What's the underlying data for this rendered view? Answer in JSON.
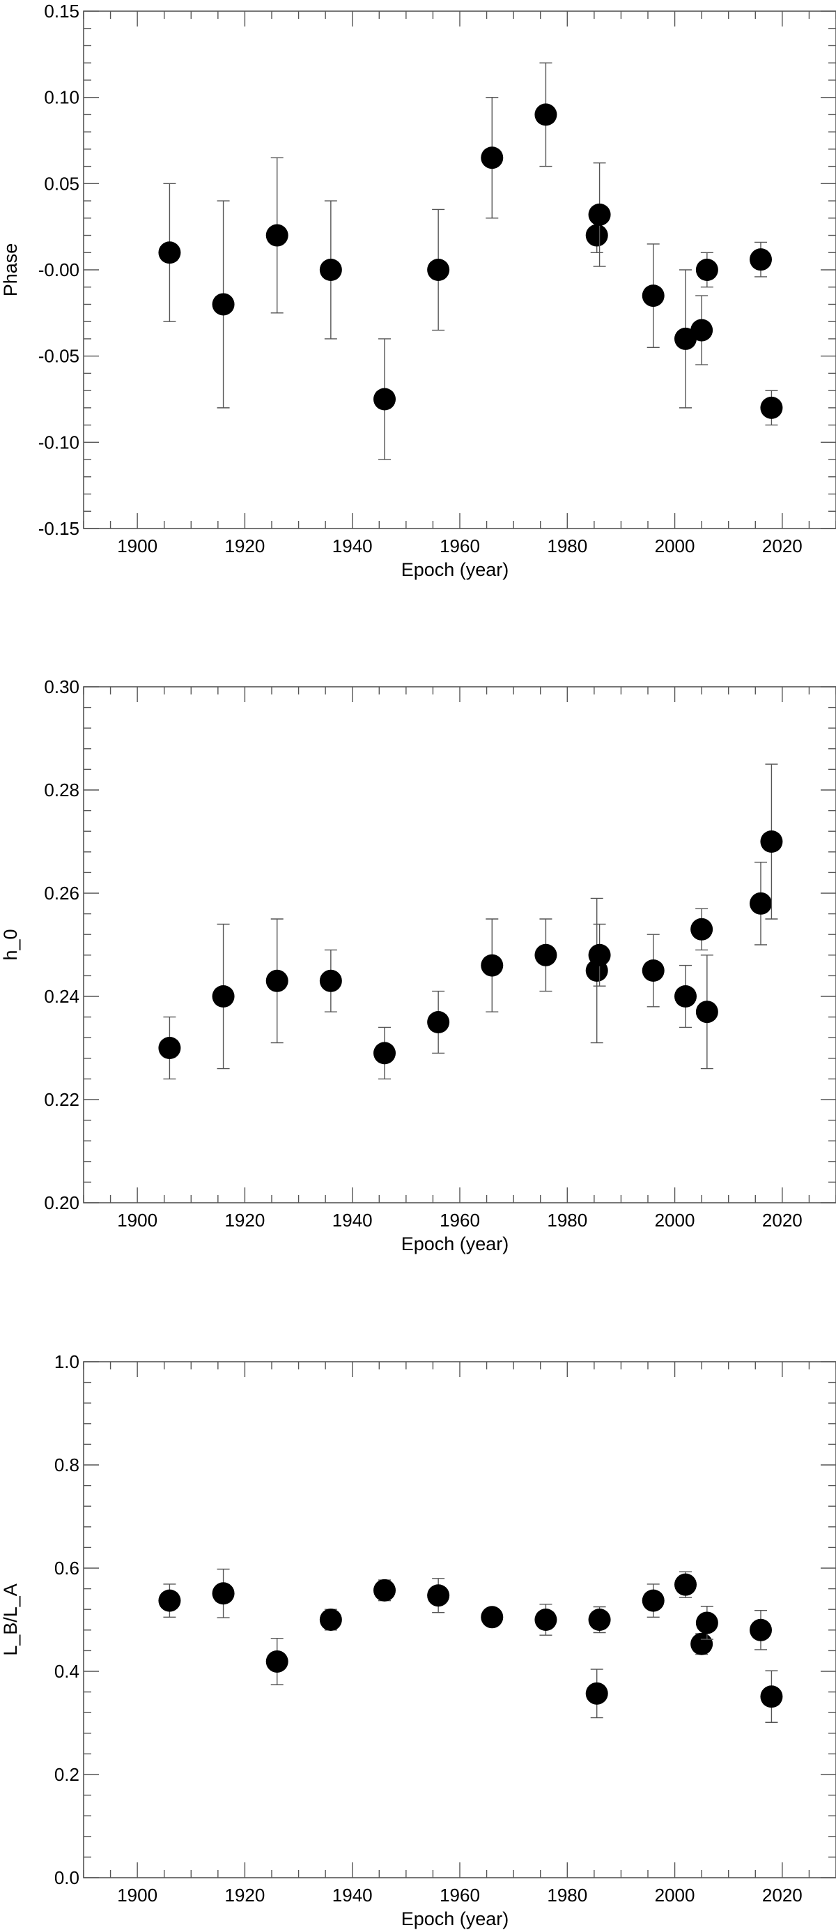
{
  "colors": {
    "axes": "#555555",
    "markers": "#000000",
    "background": "#ffffff"
  },
  "chart_data": [
    {
      "type": "scatter",
      "xlabel": "Epoch (year)",
      "ylabel": "Phase",
      "xlim": [
        1890,
        2030
      ],
      "ylim": [
        -0.15,
        0.15
      ],
      "xticks": [
        1900,
        1920,
        1940,
        1960,
        1980,
        2000,
        2020
      ],
      "xtick_labels": [
        "1900",
        "1920",
        "1940",
        "1960",
        "1980",
        "2000",
        "2020"
      ],
      "yticks": [
        -0.15,
        -0.1,
        -0.05,
        0.0,
        0.05,
        0.1,
        0.15
      ],
      "ytick_labels": [
        "-0.15",
        "-0.10",
        "-0.05",
        "-0.00",
        "0.05",
        "0.10",
        "0.15"
      ],
      "grid": false,
      "points": [
        {
          "x": 1906,
          "y": 0.01,
          "err": 0.04
        },
        {
          "x": 1916,
          "y": -0.02,
          "err": 0.06
        },
        {
          "x": 1926,
          "y": 0.02,
          "err": 0.045
        },
        {
          "x": 1936,
          "y": 0.0,
          "err": 0.04
        },
        {
          "x": 1946,
          "y": -0.075,
          "err": 0.035
        },
        {
          "x": 1956,
          "y": 0.0,
          "err": 0.035
        },
        {
          "x": 1966,
          "y": 0.065,
          "err": 0.035
        },
        {
          "x": 1976,
          "y": 0.09,
          "err": 0.03
        },
        {
          "x": 1985.5,
          "y": 0.02,
          "err": 0.01
        },
        {
          "x": 1986,
          "y": 0.032,
          "err": 0.03
        },
        {
          "x": 1996,
          "y": -0.015,
          "err": 0.03
        },
        {
          "x": 2002,
          "y": -0.04,
          "err": 0.04
        },
        {
          "x": 2005,
          "y": -0.035,
          "err": 0.02
        },
        {
          "x": 2006,
          "y": 0.0,
          "err": 0.01
        },
        {
          "x": 2016,
          "y": 0.006,
          "err": 0.01
        },
        {
          "x": 2018,
          "y": -0.08,
          "err": 0.01
        }
      ]
    },
    {
      "type": "scatter",
      "xlabel": "Epoch (year)",
      "ylabel": "h_0",
      "xlim": [
        1890,
        2030
      ],
      "ylim": [
        0.2,
        0.3
      ],
      "xticks": [
        1900,
        1920,
        1940,
        1960,
        1980,
        2000,
        2020
      ],
      "xtick_labels": [
        "1900",
        "1920",
        "1940",
        "1960",
        "1980",
        "2000",
        "2020"
      ],
      "yticks": [
        0.2,
        0.22,
        0.24,
        0.26,
        0.28,
        0.3
      ],
      "ytick_labels": [
        "0.20",
        "0.22",
        "0.24",
        "0.26",
        "0.28",
        "0.30"
      ],
      "grid": false,
      "points": [
        {
          "x": 1906,
          "y": 0.23,
          "err": 0.006
        },
        {
          "x": 1916,
          "y": 0.24,
          "err": 0.014
        },
        {
          "x": 1926,
          "y": 0.243,
          "err": 0.012
        },
        {
          "x": 1936,
          "y": 0.243,
          "err": 0.006
        },
        {
          "x": 1946,
          "y": 0.229,
          "err": 0.005
        },
        {
          "x": 1956,
          "y": 0.235,
          "err": 0.006
        },
        {
          "x": 1966,
          "y": 0.246,
          "err": 0.009
        },
        {
          "x": 1976,
          "y": 0.248,
          "err": 0.007
        },
        {
          "x": 1985.5,
          "y": 0.245,
          "err": 0.014
        },
        {
          "x": 1986,
          "y": 0.248,
          "err": 0.006
        },
        {
          "x": 1996,
          "y": 0.245,
          "err": 0.007
        },
        {
          "x": 2002,
          "y": 0.24,
          "err": 0.006
        },
        {
          "x": 2005,
          "y": 0.253,
          "err": 0.004
        },
        {
          "x": 2006,
          "y": 0.237,
          "err": 0.011
        },
        {
          "x": 2016,
          "y": 0.258,
          "err": 0.008
        },
        {
          "x": 2018,
          "y": 0.27,
          "err": 0.015
        }
      ]
    },
    {
      "type": "scatter",
      "xlabel": "Epoch (year)",
      "ylabel": "L_B/L_A",
      "xlim": [
        1890,
        2030
      ],
      "ylim": [
        0.0,
        1.0
      ],
      "xticks": [
        1900,
        1920,
        1940,
        1960,
        1980,
        2000,
        2020
      ],
      "xtick_labels": [
        "1900",
        "1920",
        "1940",
        "1960",
        "1980",
        "2000",
        "2020"
      ],
      "yticks": [
        0.0,
        0.2,
        0.4,
        0.6,
        0.8,
        1.0
      ],
      "ytick_labels": [
        "0.0",
        "0.2",
        "0.4",
        "0.6",
        "0.8",
        "1.0"
      ],
      "grid": false,
      "points": [
        {
          "x": 1906,
          "y": 0.537,
          "err": 0.032
        },
        {
          "x": 1916,
          "y": 0.551,
          "err": 0.047
        },
        {
          "x": 1926,
          "y": 0.419,
          "err": 0.045
        },
        {
          "x": 1936,
          "y": 0.5,
          "err": 0.02
        },
        {
          "x": 1946,
          "y": 0.557,
          "err": 0.02
        },
        {
          "x": 1956,
          "y": 0.547,
          "err": 0.033
        },
        {
          "x": 1966,
          "y": 0.505,
          "err": 0.016
        },
        {
          "x": 1976,
          "y": 0.5,
          "err": 0.03
        },
        {
          "x": 1985.5,
          "y": 0.357,
          "err": 0.047
        },
        {
          "x": 1986,
          "y": 0.5,
          "err": 0.025
        },
        {
          "x": 1996,
          "y": 0.537,
          "err": 0.032
        },
        {
          "x": 2002,
          "y": 0.568,
          "err": 0.025
        },
        {
          "x": 2005,
          "y": 0.453,
          "err": 0.02
        },
        {
          "x": 2006,
          "y": 0.494,
          "err": 0.032
        },
        {
          "x": 2016,
          "y": 0.48,
          "err": 0.038
        },
        {
          "x": 2018,
          "y": 0.351,
          "err": 0.05
        }
      ]
    }
  ]
}
